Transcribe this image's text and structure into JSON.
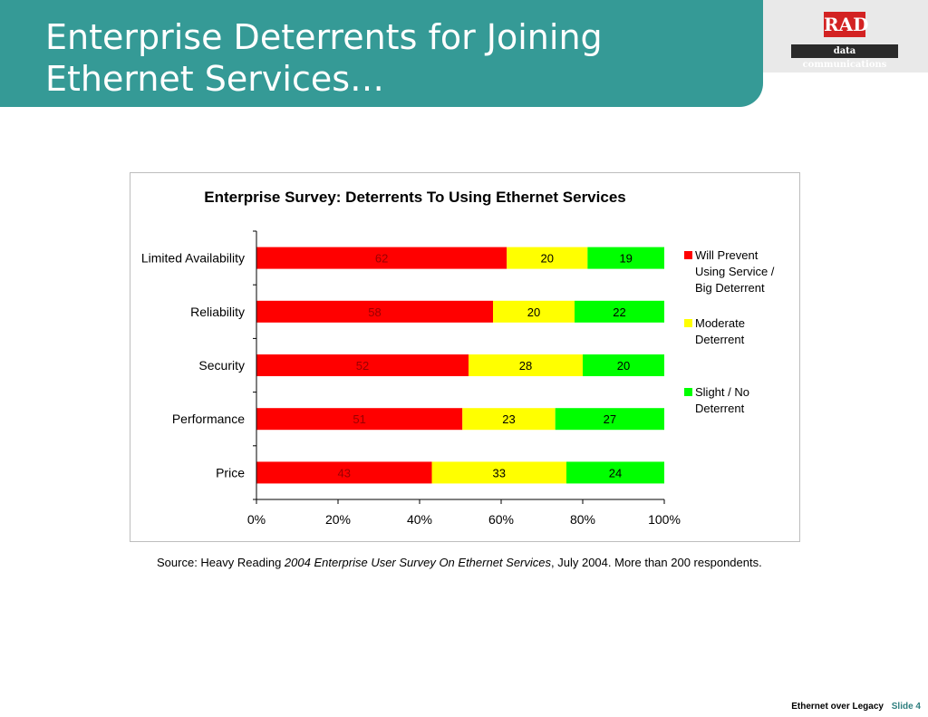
{
  "title": {
    "line1": "Enterprise Deterrents for Joining",
    "line2": "Ethernet Services…"
  },
  "logo": {
    "brand": "RAD",
    "tagline": "data communications"
  },
  "chart_data": {
    "type": "bar",
    "orientation": "horizontal",
    "stacked": "percent",
    "title": "Enterprise Survey:  Deterrents To Using Ethernet Services",
    "categories": [
      "Limited Availability",
      "Reliability",
      "Security",
      "Performance",
      "Price"
    ],
    "series": [
      {
        "name": "Will Prevent Using Service / Big Deterrent",
        "legend_lines": [
          "Will Prevent",
          "Using Service /",
          "Big Deterrent"
        ],
        "color": "#ff0000",
        "label_color": "#9a0000",
        "values": [
          62,
          58,
          52,
          51,
          43
        ]
      },
      {
        "name": "Moderate Deterrent",
        "legend_lines": [
          "Moderate",
          "Deterrent"
        ],
        "color": "#ffff00",
        "label_color": "#000000",
        "values": [
          20,
          20,
          28,
          23,
          33
        ]
      },
      {
        "name": "Slight / No Deterrent",
        "legend_lines": [
          "Slight / No",
          "Deterrent"
        ],
        "color": "#00ff00",
        "label_color": "#000000",
        "values": [
          19,
          22,
          20,
          27,
          24
        ]
      }
    ],
    "xlim": [
      0,
      100
    ],
    "xticks": [
      "0%",
      "20%",
      "40%",
      "60%",
      "80%",
      "100%"
    ],
    "legend_position": "right",
    "grid": false
  },
  "source": {
    "prefix": "Source:  Heavy Reading ",
    "publication": "2004 Enterprise User Survey On Ethernet Services",
    "suffix": ", July 2004. More than 200 respondents."
  },
  "footer": {
    "text": "Ethernet over Legacy",
    "slide": "Slide 4"
  }
}
